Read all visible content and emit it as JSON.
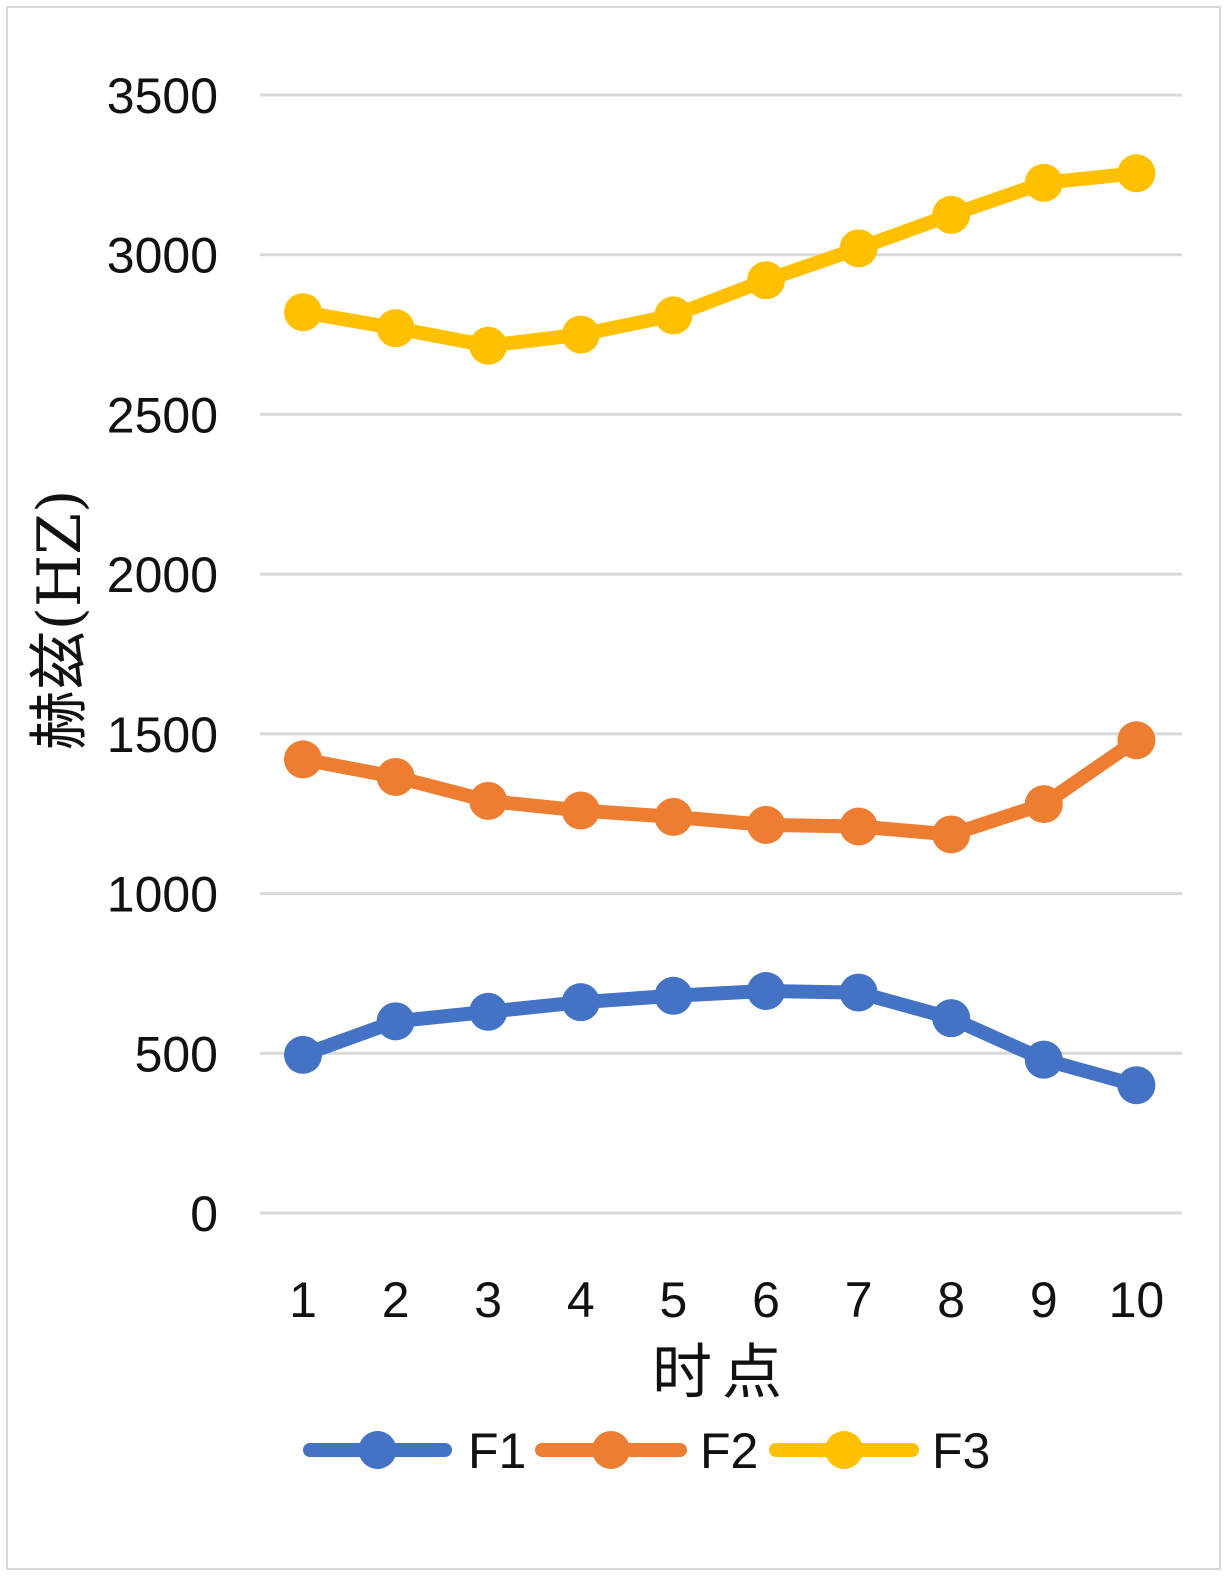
{
  "chart_data": {
    "type": "line",
    "x": [
      1,
      2,
      3,
      4,
      5,
      6,
      7,
      8,
      9,
      10
    ],
    "xlabel": "时点",
    "ylabel": "赫兹(HZ)",
    "ylim": [
      0,
      3500
    ],
    "yticks": [
      0,
      500,
      1000,
      1500,
      2000,
      2500,
      3000,
      3500
    ],
    "grid": "horizontal",
    "legend_position": "bottom",
    "series": [
      {
        "name": "F1",
        "color": "#4472C4",
        "values": [
          495,
          600,
          630,
          660,
          680,
          695,
          690,
          610,
          480,
          400
        ]
      },
      {
        "name": "F2",
        "color": "#ED7D31",
        "values": [
          1420,
          1365,
          1290,
          1260,
          1240,
          1215,
          1210,
          1185,
          1280,
          1480
        ]
      },
      {
        "name": "F3",
        "color": "#FFC000",
        "values": [
          2820,
          2770,
          2715,
          2750,
          2810,
          2920,
          3020,
          3125,
          3225,
          3255
        ]
      }
    ]
  }
}
